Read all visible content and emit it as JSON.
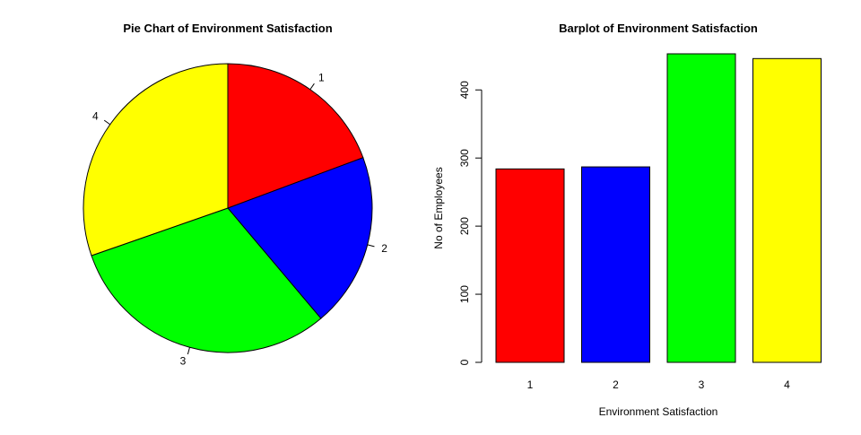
{
  "chart_data": [
    {
      "type": "pie",
      "title": "Pie Chart of Environment Satisfaction",
      "labels": [
        "1",
        "2",
        "3",
        "4"
      ],
      "values": [
        284,
        287,
        453,
        446
      ],
      "colors": [
        "#ff0000",
        "#0000ff",
        "#00ff00",
        "#ffff00"
      ],
      "start": "12 o'clock",
      "direction": "clockwise"
    },
    {
      "type": "bar",
      "title": "Barplot of Environment Satisfaction",
      "categories": [
        "1",
        "2",
        "3",
        "4"
      ],
      "values": [
        284,
        287,
        453,
        446
      ],
      "colors": [
        "#ff0000",
        "#0000ff",
        "#00ff00",
        "#ffff00"
      ],
      "xlabel": "Environment Satisfaction",
      "ylabel": "No of Employees",
      "yticks": [
        "0",
        "100",
        "200",
        "300",
        "400"
      ],
      "ylim": [
        0,
        453
      ],
      "grid": false
    }
  ]
}
